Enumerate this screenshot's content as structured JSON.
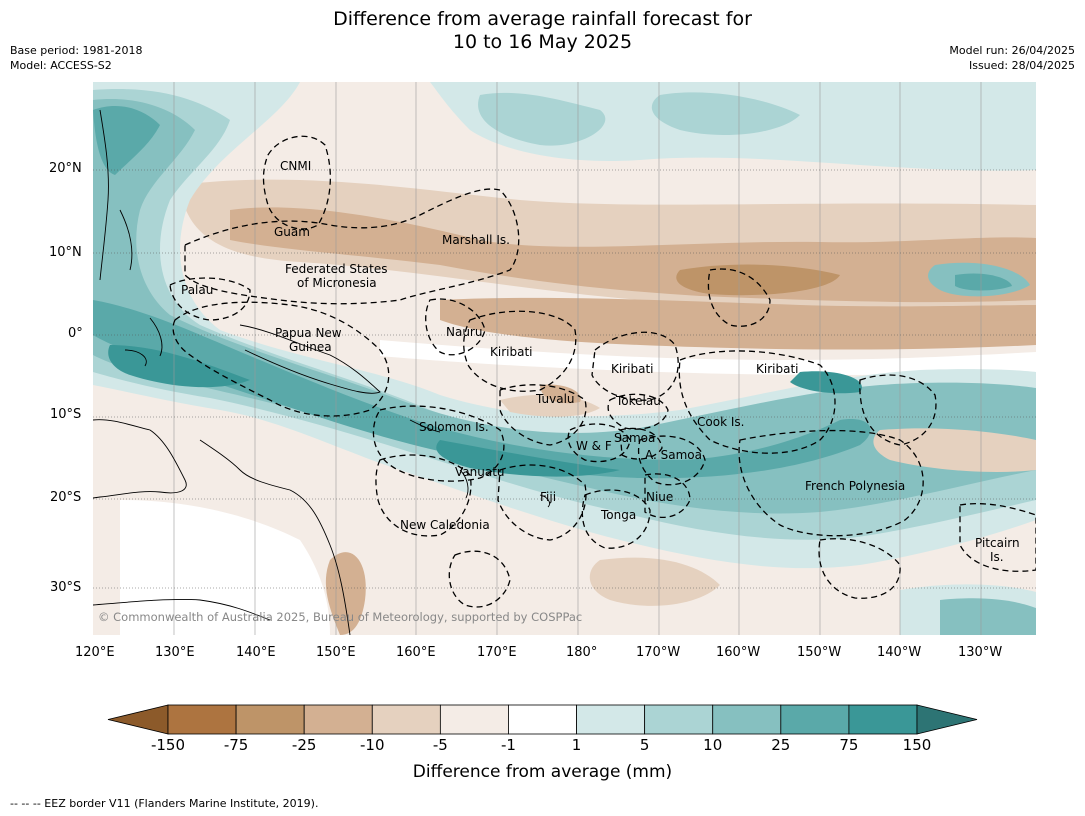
{
  "title": {
    "line1": "Difference from average rainfall forecast for",
    "line2": "10 to 16 May 2025"
  },
  "meta": {
    "base_period": "Base period: 1981-2018",
    "model": "Model: ACCESS-S2",
    "model_run": "Model run: 26/04/2025",
    "issued": "Issued: 28/04/2025"
  },
  "copyright": "© Commonwealth of Australia 2025, Bureau of Meteorology, supported by COSPPac",
  "axes": {
    "lon_labels": [
      "120°E",
      "130°E",
      "140°E",
      "150°E",
      "160°E",
      "170°E",
      "180°",
      "170°W",
      "160°W",
      "150°W",
      "140°W",
      "130°W"
    ],
    "lat_labels": [
      "20°N",
      "10°N",
      "0°",
      "10°S",
      "20°S",
      "30°S"
    ]
  },
  "regions": {
    "cnmi": "CNMI",
    "guam": "Guam",
    "marshall": "Marshall Is.",
    "fsm_1": "Federated States",
    "fsm_2": "of Micronesia",
    "palau": "Palau",
    "png_1": "Papua New",
    "png_2": "Guinea",
    "nauru": "Nauru",
    "kiribati_w": "Kiribati",
    "kiribati_c": "Kiribati",
    "kiribati_e": "Kiribati",
    "tuvalu": "Tuvalu",
    "tokelau": "Tokelau",
    "cook": "Cook Is.",
    "solomon": "Solomon Is.",
    "wf": "W & F",
    "samoa": "Samoa",
    "asamoa": "A. Samoa",
    "vanuatu": "Vanuatu",
    "fiji": "Fiji",
    "niue": "Niue",
    "tonga": "Tonga",
    "french_polynesia": "French Polynesia",
    "new_caledonia": "New Caledonia",
    "pitcairn_1": "Pitcairn",
    "pitcairn_2": "Is."
  },
  "colorbar": {
    "title": "Difference from average (mm)",
    "labels": [
      "-150",
      "-75",
      "-25",
      "-10",
      "-5",
      "-1",
      "1",
      "5",
      "10",
      "25",
      "75",
      "150"
    ],
    "colors": [
      "#8c5a2a",
      "#ad7440",
      "#be9468",
      "#d3b092",
      "#e5d1bf",
      "#f4ece6",
      "#ffffff",
      "#d3e8e8",
      "#abd4d4",
      "#86c0c0",
      "#5aa9a9",
      "#3a9797",
      "#2d7474"
    ]
  },
  "footnote": "--  --  -- EEZ border V11 (Flanders Marine Institute, 2019)."
}
